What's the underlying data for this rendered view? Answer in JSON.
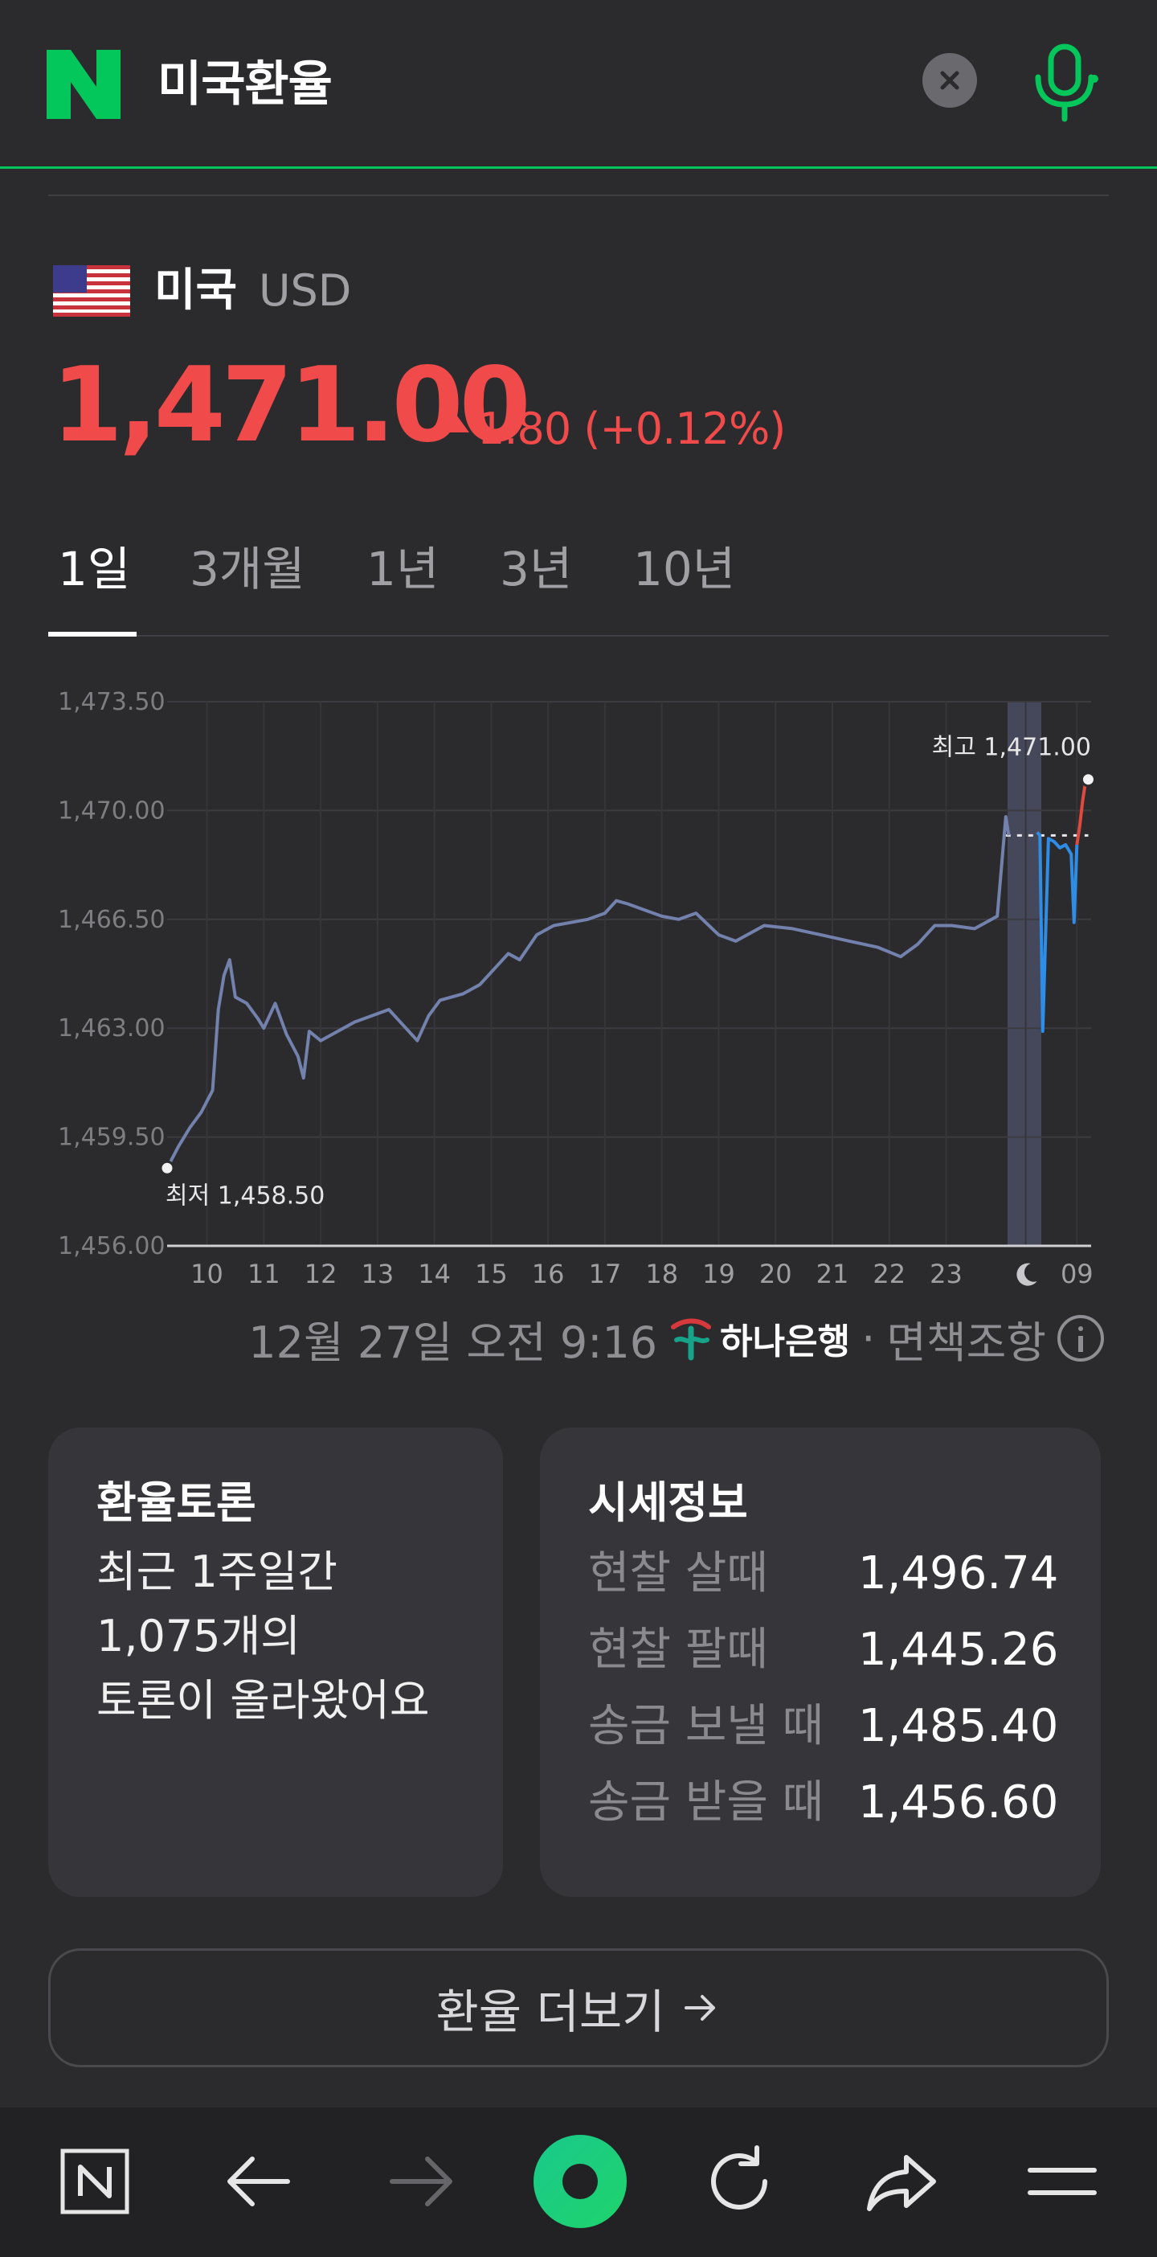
{
  "header": {
    "logo_letter": "N",
    "search_query": "미국환율",
    "clear_icon": "close-icon",
    "mic_icon": "microphone-icon"
  },
  "currency": {
    "flag_icon": "us-flag-icon",
    "country": "미국",
    "code": "USD",
    "rate": "1,471.00",
    "change": "1.80 (+0.12%)",
    "change_direction": "up"
  },
  "tabs": [
    {
      "label": "1일",
      "active": true
    },
    {
      "label": "3개월",
      "active": false
    },
    {
      "label": "1년",
      "active": false
    },
    {
      "label": "3년",
      "active": false
    },
    {
      "label": "10년",
      "active": false
    }
  ],
  "chart_data": {
    "type": "line",
    "ylim": [
      1456.0,
      1473.5
    ],
    "y_ticks": [
      "1,473.50",
      "1,470.00",
      "1,466.50",
      "1,463.00",
      "1,459.50",
      "1,456.00"
    ],
    "x_ticks": [
      "10",
      "11",
      "12",
      "13",
      "14",
      "15",
      "16",
      "17",
      "18",
      "19",
      "20",
      "21",
      "22",
      "23",
      "moon-icon",
      "09"
    ],
    "max_label": "최고 1,471.00",
    "min_label": "최저 1,458.50",
    "grid": true,
    "series": [
      {
        "color": "#7381ad",
        "x": [
          9.3,
          9.5,
          9.7,
          9.9,
          10.1,
          10.2,
          10.3,
          10.4,
          10.5,
          10.7,
          10.9,
          11.0,
          11.2,
          11.4,
          11.6,
          11.7,
          11.8,
          12.0,
          12.3,
          12.6,
          12.9,
          13.2,
          13.5,
          13.7,
          13.9,
          14.1,
          14.5,
          14.8,
          15.1,
          15.3,
          15.5,
          15.8,
          16.1,
          16.4,
          16.7,
          17.0,
          17.2,
          17.4,
          17.7,
          18.0,
          18.3,
          18.6,
          19.0,
          19.3,
          19.8,
          20.3,
          20.8,
          21.3,
          21.8,
          22.2,
          22.5,
          22.8,
          23.1,
          23.5,
          23.9,
          24.05,
          24.1
        ],
        "values": [
          1458.5,
          1459.2,
          1459.8,
          1460.3,
          1461.0,
          1463.6,
          1464.7,
          1465.2,
          1464.0,
          1463.8,
          1463.3,
          1463.0,
          1463.8,
          1462.8,
          1462.1,
          1461.4,
          1462.9,
          1462.6,
          1462.9,
          1463.2,
          1463.4,
          1463.6,
          1463.0,
          1462.6,
          1463.4,
          1463.9,
          1464.1,
          1464.4,
          1465.0,
          1465.4,
          1465.2,
          1466.0,
          1466.3,
          1466.4,
          1466.5,
          1466.7,
          1467.1,
          1467.0,
          1466.8,
          1466.6,
          1466.5,
          1466.7,
          1466.0,
          1465.8,
          1466.3,
          1466.2,
          1466.0,
          1465.8,
          1465.6,
          1465.3,
          1465.7,
          1466.3,
          1466.3,
          1466.2,
          1466.6,
          1469.8,
          1469.2
        ]
      },
      {
        "color": "#2e8de6",
        "x": [
          24.6,
          24.65,
          24.7,
          24.8,
          24.9,
          25.0,
          25.1,
          25.2,
          25.25,
          25.3
        ],
        "values": [
          1469.3,
          1469.2,
          1462.9,
          1469.1,
          1469.0,
          1468.8,
          1468.9,
          1468.6,
          1466.4,
          1468.9
        ]
      },
      {
        "color": "#e0493e",
        "x": [
          25.3,
          25.35,
          25.4,
          25.45,
          25.5
        ],
        "values": [
          1468.9,
          1469.5,
          1470.3,
          1470.9,
          1471.0
        ]
      }
    ],
    "reference_line": {
      "value": 1469.2,
      "style": "dashed"
    }
  },
  "source": {
    "datetime": "12월 27일 오전 9:16",
    "bank": "하나은행",
    "separator": "·",
    "disclaimer": "면책조항",
    "info_icon": "info-icon"
  },
  "discussion_card": {
    "title": "환율토론",
    "line1": "최근 1주일간",
    "line2": "1,075개의",
    "line3": "토론이 올라왔어요"
  },
  "price_info_card": {
    "title": "시세정보",
    "rows": [
      {
        "label": "현찰 살때",
        "value": "1,496.74"
      },
      {
        "label": "현찰 팔때",
        "value": "1,445.26"
      },
      {
        "label": "송금 보낼 때",
        "value": "1,485.40"
      },
      {
        "label": "송금 받을 때",
        "value": "1,456.60"
      }
    ]
  },
  "more_button": {
    "label": "환율 더보기",
    "icon": "arrow-right-icon"
  },
  "bottom_nav": [
    "naver-home-icon",
    "back-arrow-icon",
    "forward-arrow-icon",
    "green-dot-icon",
    "refresh-icon",
    "share-icon",
    "menu-icon"
  ]
}
